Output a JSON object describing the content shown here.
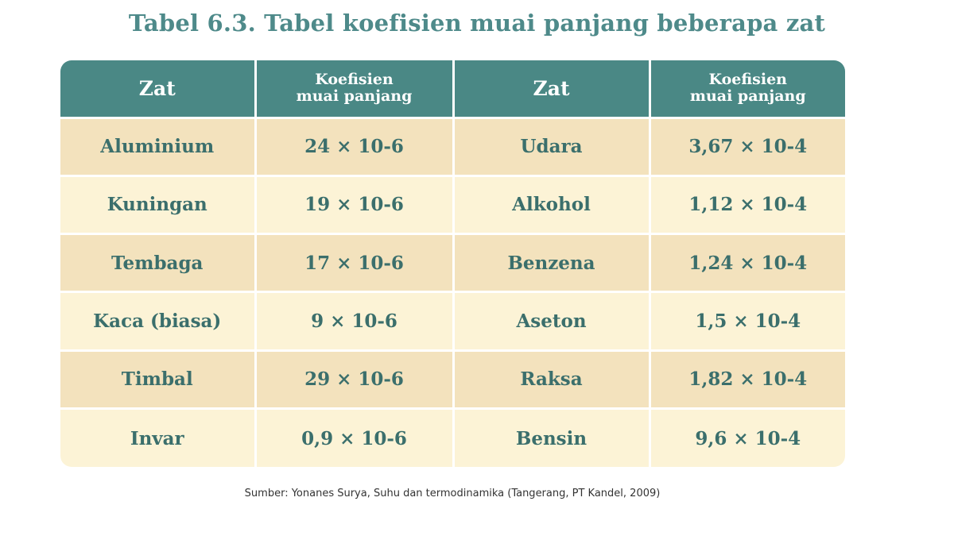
{
  "title": "Tabel 6.3. Tabel koefisien muai panjang beberapa zat",
  "table": {
    "headers": {
      "col1": "Zat",
      "col2_line1": "Koefisien",
      "col2_line2": "muai panjang",
      "col3": "Zat",
      "col4_line1": "Koefisien",
      "col4_line2": "muai panjang"
    },
    "rows": [
      [
        "Aluminium",
        "24 × 10-6",
        "Udara",
        "3,67 × 10-4"
      ],
      [
        "Kuningan",
        "19 × 10-6",
        "Alkohol",
        "1,12 × 10-4"
      ],
      [
        "Tembaga",
        "17 × 10-6",
        "Benzena",
        "1,24 × 10-4"
      ],
      [
        "Kaca (biasa)",
        "9 × 10-6",
        "Aseton",
        "1,5 × 10-4"
      ],
      [
        "Timbal",
        "29 × 10-6",
        "Raksa",
        "1,82 × 10-4"
      ],
      [
        "Invar",
        "0,9 × 10-6",
        "Bensin",
        "9,6 × 10-4"
      ]
    ]
  },
  "source": "Sumber: Yonanes Surya, Suhu dan termodinamika (Tangerang, PT Kandel, 2009)",
  "colors": {
    "title": "#4e8a8a",
    "header_bg": "#4a8885",
    "row_dark": "#f3e2bd",
    "row_light": "#fcf3d6",
    "cell_text": "#3b6f6c"
  }
}
